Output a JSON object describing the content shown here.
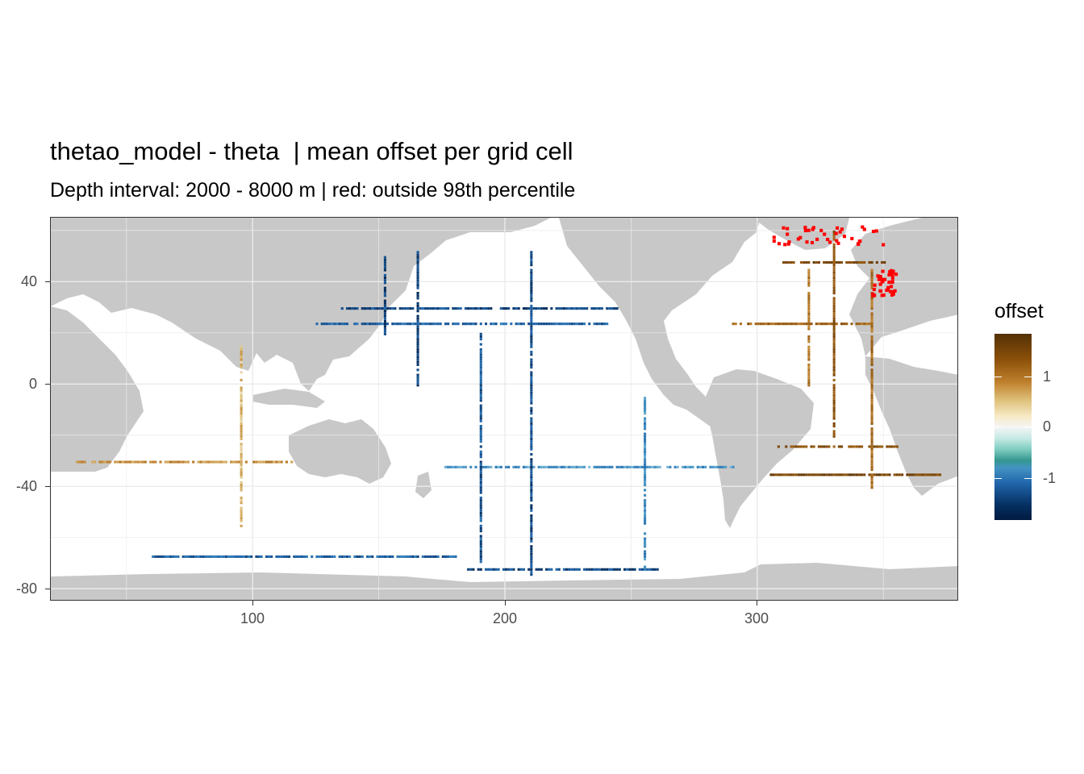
{
  "title": "thetao_model - theta  | mean offset per grid cell",
  "subtitle": "Depth interval: 2000 - 8000 m | red: outside 98th percentile",
  "colors": {
    "land": "#c8c8c8",
    "ocean": "#ffffff",
    "grid": "#ebebeb",
    "outlier": "#ff0000",
    "positive": "#8c510a",
    "negative": "#2166ac"
  },
  "chart_data": {
    "type": "heatmap",
    "x_axis": {
      "ticks": [
        100,
        200,
        300
      ],
      "range": [
        20,
        380
      ]
    },
    "y_axis": {
      "ticks": [
        40,
        0,
        -40,
        -80
      ],
      "range": [
        -85,
        65
      ]
    },
    "grid": true,
    "legend": {
      "title": "offset",
      "ticks": [
        1,
        0,
        -1
      ],
      "labels": [
        "1",
        "0",
        "-1"
      ],
      "range": [
        -1.85,
        1.85
      ],
      "placement": "right"
    },
    "sections": [
      {
        "axis": "lat",
        "value": 30,
        "from": 135,
        "to": 245,
        "offset": -1.1
      },
      {
        "axis": "lat",
        "value": 24,
        "from": 125,
        "to": 240,
        "offset": -0.9
      },
      {
        "axis": "lat",
        "value": -32,
        "from": 175,
        "to": 290,
        "offset": -0.5
      },
      {
        "axis": "lat",
        "value": -67,
        "from": 60,
        "to": 180,
        "offset": -0.9
      },
      {
        "axis": "lat",
        "value": -72,
        "from": 185,
        "to": 260,
        "offset": -1.1
      },
      {
        "axis": "lat",
        "value": -30,
        "from": 30,
        "to": 115,
        "offset": 0.7
      },
      {
        "axis": "lat",
        "value": -24,
        "from": 308,
        "to": 355,
        "offset": 1.3
      },
      {
        "axis": "lat",
        "value": -35,
        "from": 305,
        "to": 372,
        "offset": 1.5
      },
      {
        "axis": "lat",
        "value": 24,
        "from": 290,
        "to": 345,
        "offset": 1.1
      },
      {
        "axis": "lat",
        "value": 48,
        "from": 310,
        "to": 350,
        "offset": 1.4
      },
      {
        "axis": "lon",
        "value": 152,
        "from": 20,
        "to": 50,
        "offset": -1.2
      },
      {
        "axis": "lon",
        "value": 165,
        "from": 0,
        "to": 52,
        "offset": -1.2
      },
      {
        "axis": "lon",
        "value": 190,
        "from": -70,
        "to": 20,
        "offset": -1.0
      },
      {
        "axis": "lon",
        "value": 210,
        "from": -75,
        "to": 52,
        "offset": -1.1
      },
      {
        "axis": "lon",
        "value": 255,
        "from": -72,
        "to": -5,
        "offset": -0.6
      },
      {
        "axis": "lon",
        "value": 95,
        "from": -55,
        "to": 15,
        "offset": 0.4
      },
      {
        "axis": "lon",
        "value": 330,
        "from": -20,
        "to": 60,
        "offset": 1.3
      },
      {
        "axis": "lon",
        "value": 345,
        "from": -40,
        "to": 45,
        "offset": 1.0
      },
      {
        "axis": "lon",
        "value": 320,
        "from": 0,
        "to": 45,
        "offset": 0.9
      }
    ],
    "outlier_regions": [
      {
        "lon": [
          305,
          350
        ],
        "lat": [
          55,
          62
        ]
      },
      {
        "lon": [
          345,
          355
        ],
        "lat": [
          35,
          45
        ]
      }
    ]
  }
}
